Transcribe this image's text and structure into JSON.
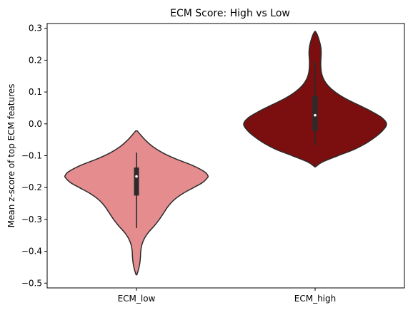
{
  "chart_data": {
    "type": "violin",
    "title": "ECM Score: High vs Low",
    "xlabel": "",
    "ylabel": "Mean z-score of top ECM features",
    "ylim": [
      -0.515,
      0.315
    ],
    "yticks": [
      -0.5,
      -0.4,
      -0.3,
      -0.2,
      -0.1,
      0.0,
      0.1,
      0.2,
      0.3
    ],
    "ytick_labels": [
      "−0.5",
      "−0.4",
      "−0.3",
      "−0.2",
      "−0.1",
      "0.0",
      "0.1",
      "0.2",
      "0.3"
    ],
    "categories": [
      "ECM_low",
      "ECM_high"
    ],
    "grid": false,
    "series": [
      {
        "category": "ECM_low",
        "color": "#e58c8f",
        "box": {
          "whisker_low": -0.327,
          "q1": -0.225,
          "median": -0.165,
          "q3": -0.137,
          "whisker_high": -0.09
        },
        "density": [
          [
            -0.474,
            0.005
          ],
          [
            -0.46,
            0.025
          ],
          [
            -0.44,
            0.045
          ],
          [
            -0.42,
            0.055
          ],
          [
            -0.4,
            0.06
          ],
          [
            -0.38,
            0.075
          ],
          [
            -0.36,
            0.11
          ],
          [
            -0.34,
            0.17
          ],
          [
            -0.32,
            0.25
          ],
          [
            -0.3,
            0.32
          ],
          [
            -0.28,
            0.38
          ],
          [
            -0.26,
            0.44
          ],
          [
            -0.24,
            0.52
          ],
          [
            -0.22,
            0.64
          ],
          [
            -0.2,
            0.8
          ],
          [
            -0.185,
            0.92
          ],
          [
            -0.17,
            0.99
          ],
          [
            -0.163,
            1.0
          ],
          [
            -0.15,
            0.95
          ],
          [
            -0.13,
            0.78
          ],
          [
            -0.11,
            0.55
          ],
          [
            -0.09,
            0.36
          ],
          [
            -0.07,
            0.22
          ],
          [
            -0.05,
            0.12
          ],
          [
            -0.035,
            0.06
          ],
          [
            -0.022,
            0.01
          ]
        ]
      },
      {
        "category": "ECM_high",
        "color": "#7b0f0f",
        "box": {
          "whisker_low": -0.068,
          "q1": -0.022,
          "median": 0.027,
          "q3": 0.087,
          "whisker_high": 0.195
        },
        "density": [
          [
            -0.135,
            0.005
          ],
          [
            -0.12,
            0.1
          ],
          [
            -0.1,
            0.32
          ],
          [
            -0.08,
            0.55
          ],
          [
            -0.06,
            0.72
          ],
          [
            -0.04,
            0.85
          ],
          [
            -0.02,
            0.95
          ],
          [
            0.0,
            1.0
          ],
          [
            0.02,
            0.93
          ],
          [
            0.04,
            0.78
          ],
          [
            0.06,
            0.6
          ],
          [
            0.08,
            0.42
          ],
          [
            0.1,
            0.28
          ],
          [
            0.12,
            0.18
          ],
          [
            0.14,
            0.12
          ],
          [
            0.16,
            0.09
          ],
          [
            0.18,
            0.08
          ],
          [
            0.2,
            0.08
          ],
          [
            0.22,
            0.085
          ],
          [
            0.24,
            0.08
          ],
          [
            0.26,
            0.06
          ],
          [
            0.28,
            0.03
          ],
          [
            0.29,
            0.005
          ]
        ]
      }
    ]
  }
}
